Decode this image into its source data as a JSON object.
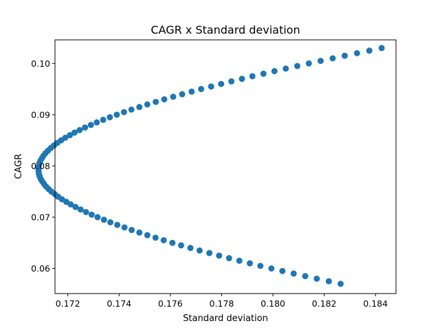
{
  "chart_data": {
    "type": "scatter",
    "title": "CAGR x Standard deviation",
    "xlabel": "Standard deviation",
    "ylabel": "CAGR",
    "xlim": [
      0.1715,
      0.1848
    ],
    "ylim": [
      0.0551,
      0.1046
    ],
    "xticks": [
      0.172,
      0.174,
      0.176,
      0.178,
      0.18,
      0.182,
      0.184
    ],
    "xtick_labels": [
      "0.172",
      "0.174",
      "0.176",
      "0.178",
      "0.180",
      "0.182",
      "0.184"
    ],
    "yticks": [
      0.06,
      0.07,
      0.08,
      0.09,
      0.1
    ],
    "ytick_labels": [
      "0.06",
      "0.07",
      "0.08",
      "0.09",
      "0.10"
    ],
    "grid": false,
    "legend": false,
    "colors": {
      "marker": "#1f77b4",
      "axes": "#000000",
      "background": "#ffffff"
    },
    "series": [
      {
        "x": [
          0.18264,
          0.18218,
          0.18171,
          0.18126,
          0.18081,
          0.18037,
          0.17994,
          0.17951,
          0.1791,
          0.17869,
          0.17829,
          0.1779,
          0.17752,
          0.17714,
          0.17678,
          0.17642,
          0.17608,
          0.17574,
          0.17542,
          0.1751,
          0.17479,
          0.17449,
          0.17421,
          0.17393,
          0.17366,
          0.17341,
          0.17316,
          0.17293,
          0.17271,
          0.1725,
          0.1723,
          0.17211,
          0.17194,
          0.17177,
          0.17162,
          0.17149,
          0.17136,
          0.17125,
          0.17115,
          0.17107,
          0.171,
          0.17094,
          0.1709,
          0.17087,
          0.17086,
          0.17085,
          0.17087,
          0.17089,
          0.17093,
          0.17099,
          0.17105,
          0.17113,
          0.17123,
          0.17134,
          0.17146,
          0.17159,
          0.17174,
          0.1719,
          0.17208,
          0.17226,
          0.17246,
          0.17267,
          0.1729,
          0.17313,
          0.17338,
          0.17364,
          0.17391,
          0.17419,
          0.17448,
          0.17479,
          0.1751,
          0.17543,
          0.17576,
          0.17611,
          0.17646,
          0.17683,
          0.1772,
          0.17759,
          0.17798,
          0.17838,
          0.17879,
          0.1792,
          0.17963,
          0.18006,
          0.1805,
          0.18095,
          0.1814,
          0.18186,
          0.18233,
          0.1828,
          0.18328,
          0.18376,
          0.18424
        ],
        "y": [
          0.057,
          0.0575,
          0.058,
          0.0585,
          0.059,
          0.0595,
          0.06,
          0.0605,
          0.061,
          0.0615,
          0.062,
          0.0625,
          0.063,
          0.0635,
          0.064,
          0.0645,
          0.065,
          0.0655,
          0.066,
          0.0665,
          0.067,
          0.0675,
          0.068,
          0.0685,
          0.069,
          0.0695,
          0.07,
          0.0705,
          0.071,
          0.0715,
          0.072,
          0.0725,
          0.073,
          0.0735,
          0.074,
          0.0745,
          0.075,
          0.0755,
          0.076,
          0.0765,
          0.077,
          0.0775,
          0.078,
          0.0785,
          0.079,
          0.0795,
          0.08,
          0.0805,
          0.081,
          0.0815,
          0.082,
          0.0825,
          0.083,
          0.0835,
          0.084,
          0.0845,
          0.085,
          0.0855,
          0.086,
          0.0865,
          0.087,
          0.0875,
          0.088,
          0.0885,
          0.089,
          0.0895,
          0.09,
          0.0905,
          0.091,
          0.0915,
          0.092,
          0.0925,
          0.093,
          0.0935,
          0.094,
          0.0945,
          0.095,
          0.0955,
          0.096,
          0.0965,
          0.097,
          0.0975,
          0.098,
          0.0985,
          0.099,
          0.0995,
          0.1,
          0.1005,
          0.101,
          0.1015,
          0.102,
          0.1025,
          0.103
        ]
      }
    ]
  }
}
